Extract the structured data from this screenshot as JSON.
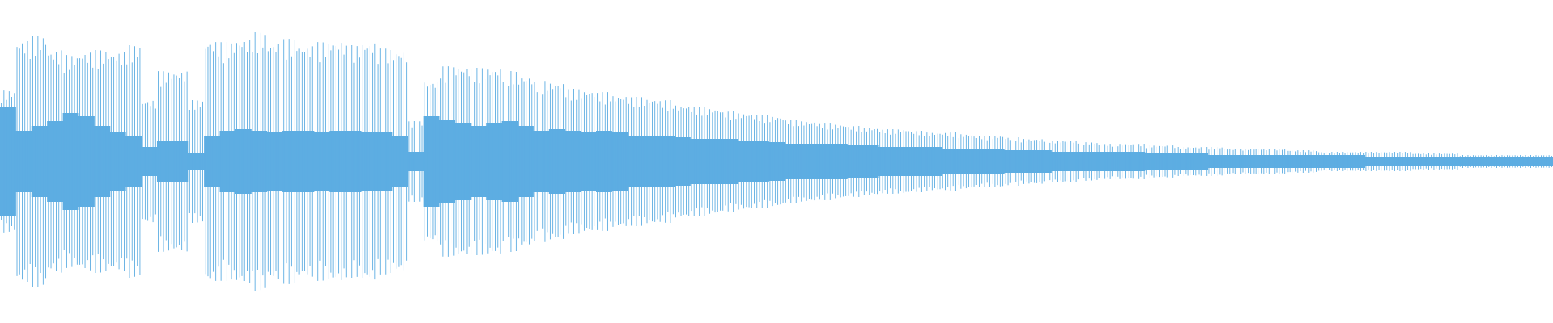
{
  "chart_data": {
    "type": "waveform",
    "color": "#5dade2",
    "ylim": [
      -100,
      100
    ],
    "peaks": [
      44,
      75,
      78,
      69,
      66,
      68,
      69,
      68,
      72,
      38,
      56,
      56,
      38,
      75,
      74,
      76,
      80,
      74,
      76,
      72,
      74,
      75,
      72,
      74,
      70,
      69,
      25,
      50,
      59,
      59,
      58,
      58,
      56,
      53,
      50,
      49,
      45,
      44,
      43,
      41,
      40,
      39,
      38,
      35,
      34,
      33,
      31,
      30,
      29,
      28,
      26,
      25,
      24,
      23,
      22,
      21,
      20,
      20,
      19,
      18,
      18,
      17,
      16,
      16,
      15,
      14,
      14,
      13,
      13,
      12,
      11,
      11,
      11,
      10,
      10,
      9,
      9,
      9,
      8,
      8,
      8,
      8,
      7,
      7,
      6,
      6,
      6,
      6,
      6,
      6,
      5,
      5,
      5,
      4,
      4,
      4,
      4,
      4,
      4
    ],
    "rms": [
      34,
      19,
      22,
      25,
      30,
      28,
      22,
      18,
      16,
      9,
      13,
      13,
      5,
      16,
      19,
      20,
      19,
      18,
      19,
      19,
      18,
      19,
      19,
      18,
      18,
      16,
      6,
      28,
      26,
      24,
      22,
      24,
      25,
      22,
      19,
      20,
      19,
      18,
      19,
      18,
      16,
      16,
      16,
      15,
      14,
      14,
      14,
      13,
      13,
      12,
      11,
      11,
      11,
      11,
      10,
      10,
      9,
      9,
      9,
      9,
      8,
      8,
      8,
      8,
      7,
      7,
      7,
      6,
      6,
      6,
      6,
      6,
      6,
      5,
      5,
      5,
      5,
      4,
      4,
      4,
      4,
      4,
      4,
      4,
      4,
      4,
      4,
      3,
      3,
      3,
      3,
      3,
      3,
      3,
      3,
      3,
      3,
      3,
      3
    ]
  }
}
